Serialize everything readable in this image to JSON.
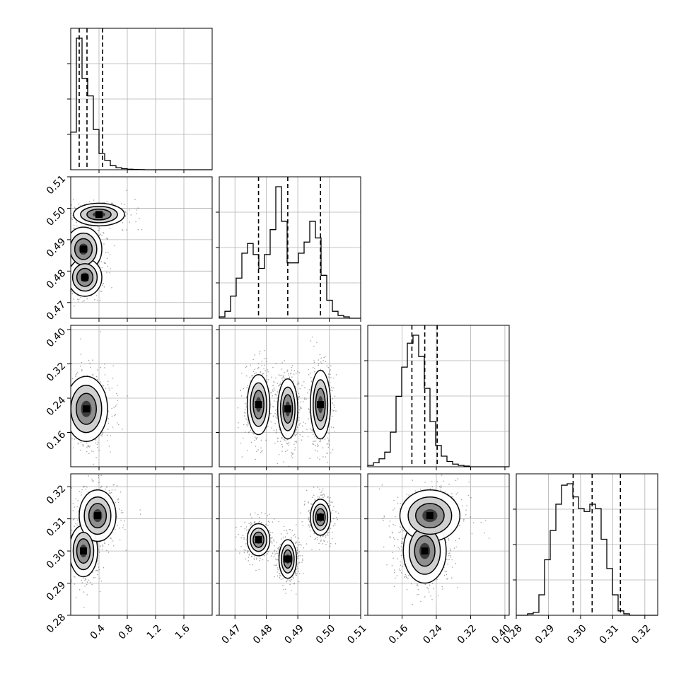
{
  "chart_data": {
    "type": "corner",
    "ticks": {
      "x": [
        {
          "values": [
            0.4,
            0.8,
            1.2,
            1.6
          ],
          "labels": [
            "0.4",
            "0.8",
            "1.2",
            "1.6"
          ]
        },
        {
          "values": [
            0.47,
            0.48,
            0.49,
            0.5,
            0.51
          ],
          "labels": [
            "0.47",
            "0.48",
            "0.49",
            "0.50",
            "0.51"
          ]
        },
        {
          "values": [
            0.16,
            0.24,
            0.32,
            0.4
          ],
          "labels": [
            "0.16",
            "0.24",
            "0.32",
            "0.40"
          ]
        },
        {
          "values": [
            0.28,
            0.29,
            0.3,
            0.31,
            0.32
          ],
          "labels": [
            "0.28",
            "0.29",
            "0.30",
            "0.31",
            "0.32"
          ]
        }
      ],
      "y": [
        null,
        {
          "values": [
            0.47,
            0.48,
            0.49,
            0.5,
            0.51
          ],
          "labels": [
            "0.47",
            "0.48",
            "0.49",
            "0.50",
            "0.51"
          ]
        },
        {
          "values": [
            0.16,
            0.24,
            0.32,
            0.4
          ],
          "labels": [
            "0.16",
            "0.24",
            "0.32",
            "0.40"
          ]
        },
        {
          "values": [
            0.28,
            0.29,
            0.3,
            0.31,
            0.32
          ],
          "labels": [
            "0.28",
            "0.29",
            "0.30",
            "0.31",
            "0.32"
          ]
        }
      ]
    },
    "ranges": [
      [
        0.0,
        2.0
      ],
      [
        0.465,
        0.51
      ],
      [
        0.08,
        0.41
      ],
      [
        0.28,
        0.324
      ]
    ],
    "histograms": [
      {
        "bins": [
          0.0,
          0.08,
          0.16,
          0.24,
          0.32,
          0.4,
          0.48,
          0.56,
          0.64,
          0.72,
          0.8,
          0.88,
          0.96,
          1.04,
          1.12,
          1.2,
          1.28,
          1.36,
          1.44,
          1.52,
          1.6,
          1.68,
          1.76,
          1.84,
          1.92,
          2.0
        ],
        "counts": [
          0.28,
          0.98,
          0.68,
          0.55,
          0.3,
          0.12,
          0.07,
          0.03,
          0.015,
          0.008,
          0.004,
          0.002,
          0.001,
          0,
          0,
          0,
          0,
          0,
          0,
          0,
          0,
          0,
          0,
          0,
          0
        ],
        "quantiles": [
          0.12,
          0.23,
          0.45
        ]
      },
      {
        "bins": [
          0.465,
          0.4668,
          0.4686,
          0.4704,
          0.4722,
          0.474,
          0.4758,
          0.4776,
          0.4794,
          0.4812,
          0.483,
          0.4848,
          0.4866,
          0.4884,
          0.4902,
          0.492,
          0.4938,
          0.4956,
          0.4974,
          0.4992,
          0.501,
          0.5028,
          0.5046,
          0.5064,
          0.5082,
          0.51
        ],
        "counts": [
          0.01,
          0.05,
          0.16,
          0.29,
          0.47,
          0.54,
          0.46,
          0.36,
          0.46,
          0.64,
          0.95,
          0.7,
          0.4,
          0.4,
          0.47,
          0.55,
          0.7,
          0.58,
          0.31,
          0.13,
          0.05,
          0.02,
          0.01,
          0,
          0
        ],
        "quantiles": [
          0.4775,
          0.4868,
          0.4972
        ]
      },
      {
        "bins": [
          0.08,
          0.0932,
          0.1064,
          0.1196,
          0.1328,
          0.146,
          0.1592,
          0.1724,
          0.1856,
          0.1988,
          0.212,
          0.2252,
          0.2384,
          0.2516,
          0.2648,
          0.278,
          0.2912,
          0.3044,
          0.3176,
          0.3308,
          0.344,
          0.3572,
          0.3704,
          0.3836,
          0.3968,
          0.41
        ],
        "counts": [
          0.01,
          0.03,
          0.06,
          0.11,
          0.26,
          0.53,
          0.75,
          0.93,
          0.99,
          0.83,
          0.59,
          0.34,
          0.16,
          0.08,
          0.04,
          0.02,
          0.01,
          0.005,
          0,
          0,
          0,
          0,
          0,
          0,
          0
        ],
        "quantiles": [
          0.183,
          0.213,
          0.242
        ]
      },
      {
        "bins": [
          0.28,
          0.28176,
          0.28352,
          0.28528,
          0.28704,
          0.2888,
          0.29056,
          0.29232,
          0.29408,
          0.29584,
          0.2976,
          0.29936,
          0.30112,
          0.30288,
          0.30464,
          0.3064,
          0.30816,
          0.30992,
          0.31168,
          0.31344,
          0.3152,
          0.31696,
          0.31872,
          0.32048,
          0.32224,
          0.324
        ],
        "counts": [
          0,
          0,
          0.01,
          0.02,
          0.14,
          0.38,
          0.58,
          0.76,
          0.89,
          0.9,
          0.81,
          0.73,
          0.71,
          0.76,
          0.73,
          0.52,
          0.32,
          0.14,
          0.03,
          0.01,
          0,
          0,
          0,
          0,
          0
        ],
        "quantiles": [
          0.2977,
          0.3036,
          0.3124
        ]
      }
    ],
    "pairs": [
      {
        "row": 1,
        "col": 0,
        "blobs": [
          [
            0.4,
            0.498,
            0.18,
            0.0018,
            0.5
          ],
          [
            0.18,
            0.487,
            0.13,
            0.0035,
            0.6
          ],
          [
            0.2,
            0.478,
            0.12,
            0.003,
            0.5
          ]
        ]
      },
      {
        "row": 2,
        "col": 0,
        "blobs": [
          [
            0.22,
            0.215,
            0.15,
            0.038,
            1.0
          ]
        ]
      },
      {
        "row": 2,
        "col": 1,
        "blobs": [
          [
            0.4775,
            0.225,
            0.0018,
            0.035,
            0.9
          ],
          [
            0.4868,
            0.215,
            0.0016,
            0.035,
            1.0
          ],
          [
            0.4972,
            0.225,
            0.0016,
            0.04,
            0.9
          ]
        ]
      },
      {
        "row": 3,
        "col": 0,
        "blobs": [
          [
            0.18,
            0.3,
            0.1,
            0.004,
            0.9
          ],
          [
            0.38,
            0.311,
            0.13,
            0.004,
            0.8
          ]
        ]
      },
      {
        "row": 3,
        "col": 1,
        "blobs": [
          [
            0.4775,
            0.3035,
            0.0018,
            0.0025,
            0.8
          ],
          [
            0.4868,
            0.2975,
            0.0014,
            0.003,
            0.9
          ],
          [
            0.4972,
            0.3105,
            0.0016,
            0.0028,
            0.8
          ]
        ]
      },
      {
        "row": 3,
        "col": 2,
        "blobs": [
          [
            0.213,
            0.3,
            0.025,
            0.005,
            1.0
          ],
          [
            0.225,
            0.311,
            0.035,
            0.004,
            0.6
          ]
        ]
      }
    ]
  }
}
